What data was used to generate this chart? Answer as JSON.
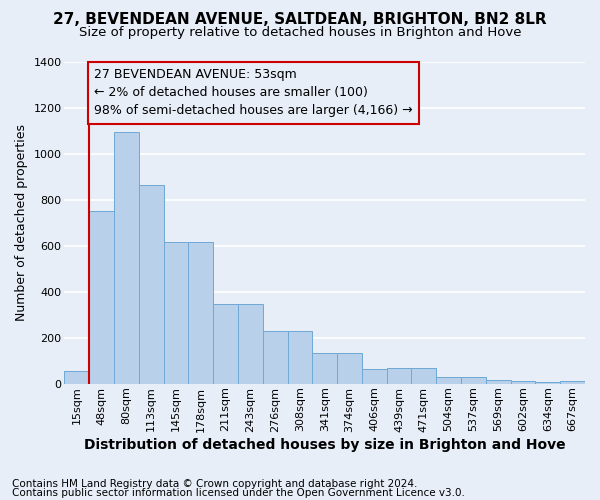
{
  "title": "27, BEVENDEAN AVENUE, SALTDEAN, BRIGHTON, BN2 8LR",
  "subtitle": "Size of property relative to detached houses in Brighton and Hove",
  "xlabel": "Distribution of detached houses by size in Brighton and Hove",
  "ylabel": "Number of detached properties",
  "footnote1": "Contains HM Land Registry data © Crown copyright and database right 2024.",
  "footnote2": "Contains public sector information licensed under the Open Government Licence v3.0.",
  "categories": [
    "15sqm",
    "48sqm",
    "80sqm",
    "113sqm",
    "145sqm",
    "178sqm",
    "211sqm",
    "243sqm",
    "276sqm",
    "308sqm",
    "341sqm",
    "374sqm",
    "406sqm",
    "439sqm",
    "471sqm",
    "504sqm",
    "537sqm",
    "569sqm",
    "602sqm",
    "634sqm",
    "667sqm"
  ],
  "values": [
    55,
    750,
    1095,
    865,
    615,
    615,
    345,
    345,
    228,
    228,
    135,
    135,
    65,
    70,
    70,
    28,
    28,
    18,
    12,
    8,
    12
  ],
  "bar_color": "#b8d0ea",
  "bar_edge_color": "#6fa8d6",
  "annotation_line_color": "#cc0000",
  "annotation_box_text_line1": "27 BEVENDEAN AVENUE: 53sqm",
  "annotation_box_text_line2": "← 2% of detached houses are smaller (100)",
  "annotation_box_text_line3": "98% of semi-detached houses are larger (4,166) →",
  "annotation_box_edge_color": "#cc0000",
  "ylim": [
    0,
    1400
  ],
  "yticks": [
    0,
    200,
    400,
    600,
    800,
    1000,
    1200,
    1400
  ],
  "background_color": "#e8eef8",
  "grid_color": "#ffffff",
  "title_fontsize": 11,
  "subtitle_fontsize": 9.5,
  "xlabel_fontsize": 10,
  "ylabel_fontsize": 9,
  "tick_fontsize": 8,
  "annotation_fontsize": 9,
  "footnote_fontsize": 7.5
}
